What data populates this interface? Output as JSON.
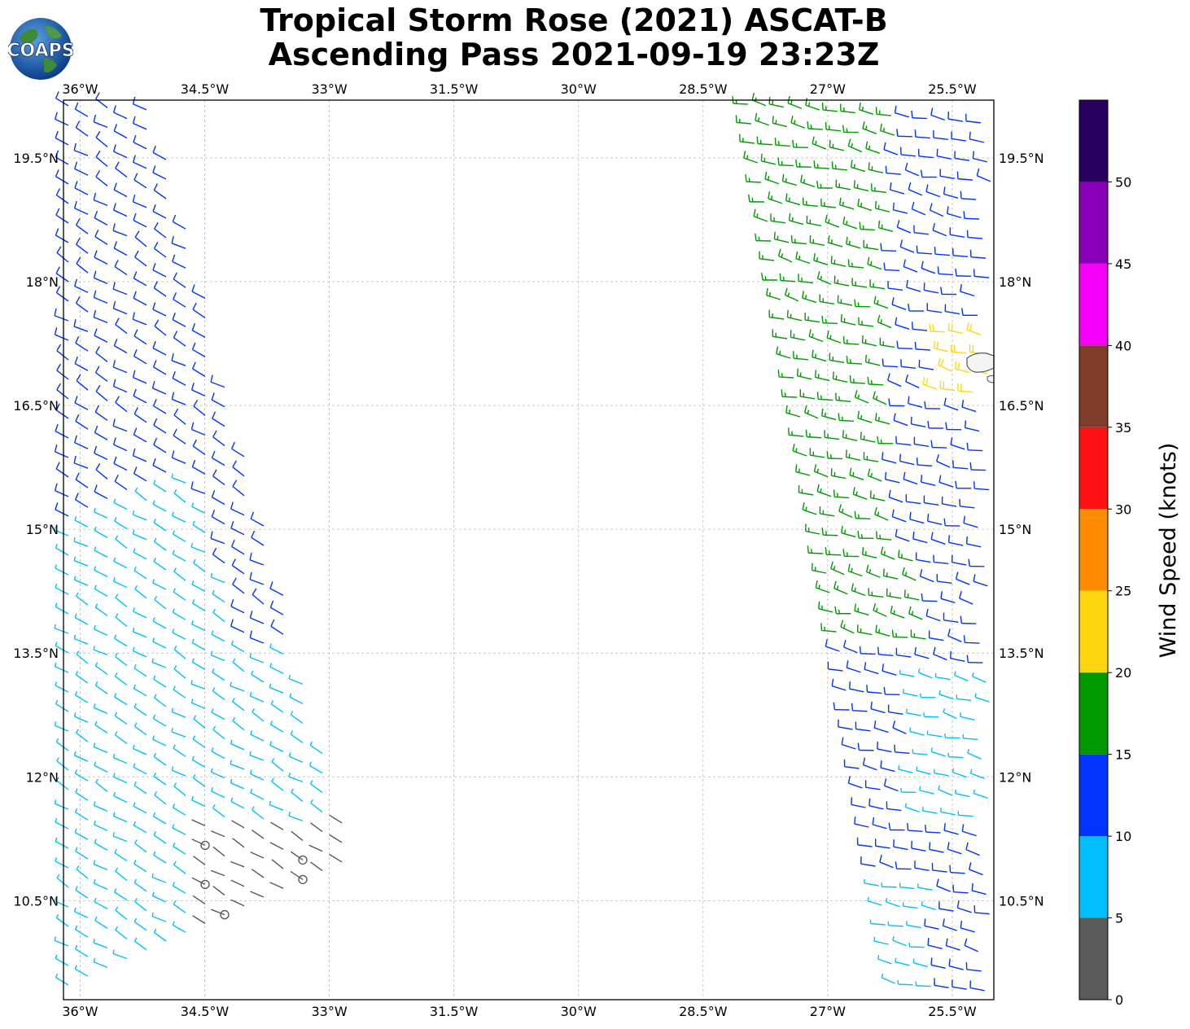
{
  "header": {
    "title_line1": "Tropical Storm Rose (2021) ASCAT-B",
    "title_line2": "Ascending Pass 2021-09-19 23:23Z",
    "logo_text": "COAPS"
  },
  "map": {
    "lon_labels": [
      "36°W",
      "34.5°W",
      "33°W",
      "31.5°W",
      "30°W",
      "28.5°W",
      "27°W",
      "25.5°W"
    ],
    "lat_labels": [
      "19.5°N",
      "18°N",
      "16.5°N",
      "15°N",
      "13.5°N",
      "12°N",
      "10.5°N"
    ],
    "lon_values": [
      -36,
      -34.5,
      -33,
      -31.5,
      -30,
      -28.5,
      -27,
      -25.5
    ],
    "lat_values": [
      19.5,
      18,
      16.5,
      15,
      13.5,
      12,
      10.5
    ],
    "lon_range": [
      -36.2,
      -25.0
    ],
    "lat_range": [
      9.3,
      20.2
    ],
    "gridlines": true
  },
  "colorbar": {
    "label": "Wind Speed (knots)",
    "tick_labels": [
      "0",
      "5",
      "10",
      "15",
      "20",
      "25",
      "30",
      "35",
      "40",
      "45",
      "50"
    ],
    "bins": [
      {
        "from": 0,
        "to": 5,
        "color": "#595959"
      },
      {
        "from": 5,
        "to": 10,
        "color": "#00bfff"
      },
      {
        "from": 10,
        "to": 15,
        "color": "#0033ff"
      },
      {
        "from": 15,
        "to": 20,
        "color": "#009900"
      },
      {
        "from": 20,
        "to": 25,
        "color": "#ffd711"
      },
      {
        "from": 25,
        "to": 30,
        "color": "#ff8c00"
      },
      {
        "from": 30,
        "to": 35,
        "color": "#ff1111"
      },
      {
        "from": 35,
        "to": 40,
        "color": "#7f3d2a"
      },
      {
        "from": 40,
        "to": 45,
        "color": "#f700f7"
      },
      {
        "from": 45,
        "to": 50,
        "color": "#8a00b8"
      },
      {
        "from": 50,
        "to": 55,
        "color": "#2c0060"
      }
    ]
  }
}
